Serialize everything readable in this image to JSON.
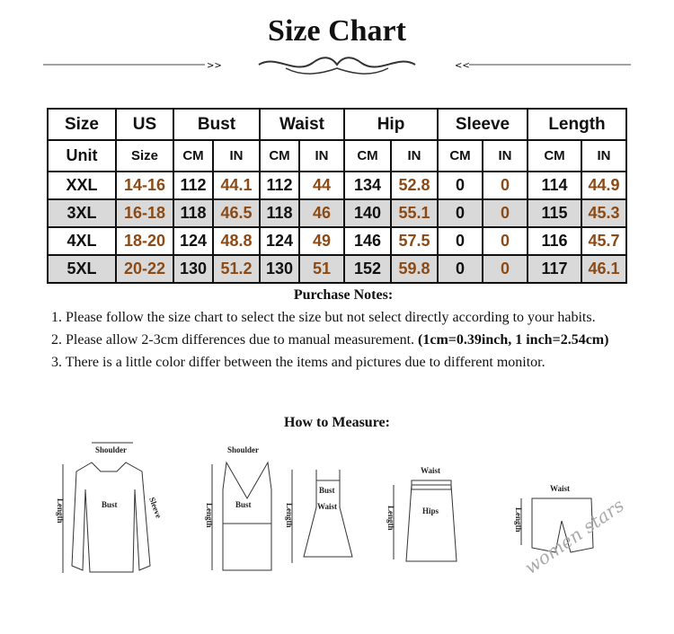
{
  "title": "Size Chart",
  "table": {
    "header": [
      "Size",
      "US",
      "Bust",
      "Waist",
      "Hip",
      "Sleeve",
      "Length"
    ],
    "unit_row": [
      "Unit",
      "Size",
      "CM",
      "IN",
      "CM",
      "IN",
      "CM",
      "IN",
      "CM",
      "IN",
      "CM",
      "IN"
    ],
    "rows": [
      [
        "XXL",
        "14-16",
        "112",
        "44.1",
        "112",
        "44",
        "134",
        "52.8",
        "0",
        "0",
        "114",
        "44.9"
      ],
      [
        "3XL",
        "16-18",
        "118",
        "46.5",
        "118",
        "46",
        "140",
        "55.1",
        "0",
        "0",
        "115",
        "45.3"
      ],
      [
        "4XL",
        "18-20",
        "124",
        "48.8",
        "124",
        "49",
        "146",
        "57.5",
        "0",
        "0",
        "116",
        "45.7"
      ],
      [
        "5XL",
        "20-22",
        "130",
        "51.2",
        "130",
        "51",
        "152",
        "59.8",
        "0",
        "0",
        "117",
        "46.1"
      ]
    ]
  },
  "notes": {
    "title": "Purchase Notes:",
    "n1": "1. Please follow the size chart to select the size but not select directly according to your habits.",
    "n2": "2. Please allow 2-3cm differences due to manual measurement. ",
    "n2b": "(1cm=0.39inch, 1 inch=2.54cm)",
    "n3": "3. There is a little color differ between the items and pictures due to different monitor."
  },
  "how_title": "How to Measure:",
  "diagram_labels": {
    "shoulder": "Shoulder",
    "bust": "Bust",
    "waist": "Waist",
    "length": "Length",
    "sleeve": "Sleeve",
    "hips": "Hips"
  },
  "watermark": "women stars",
  "colors": {
    "imperial": "#8b4a16",
    "alt_row": "#d9d9d9"
  }
}
